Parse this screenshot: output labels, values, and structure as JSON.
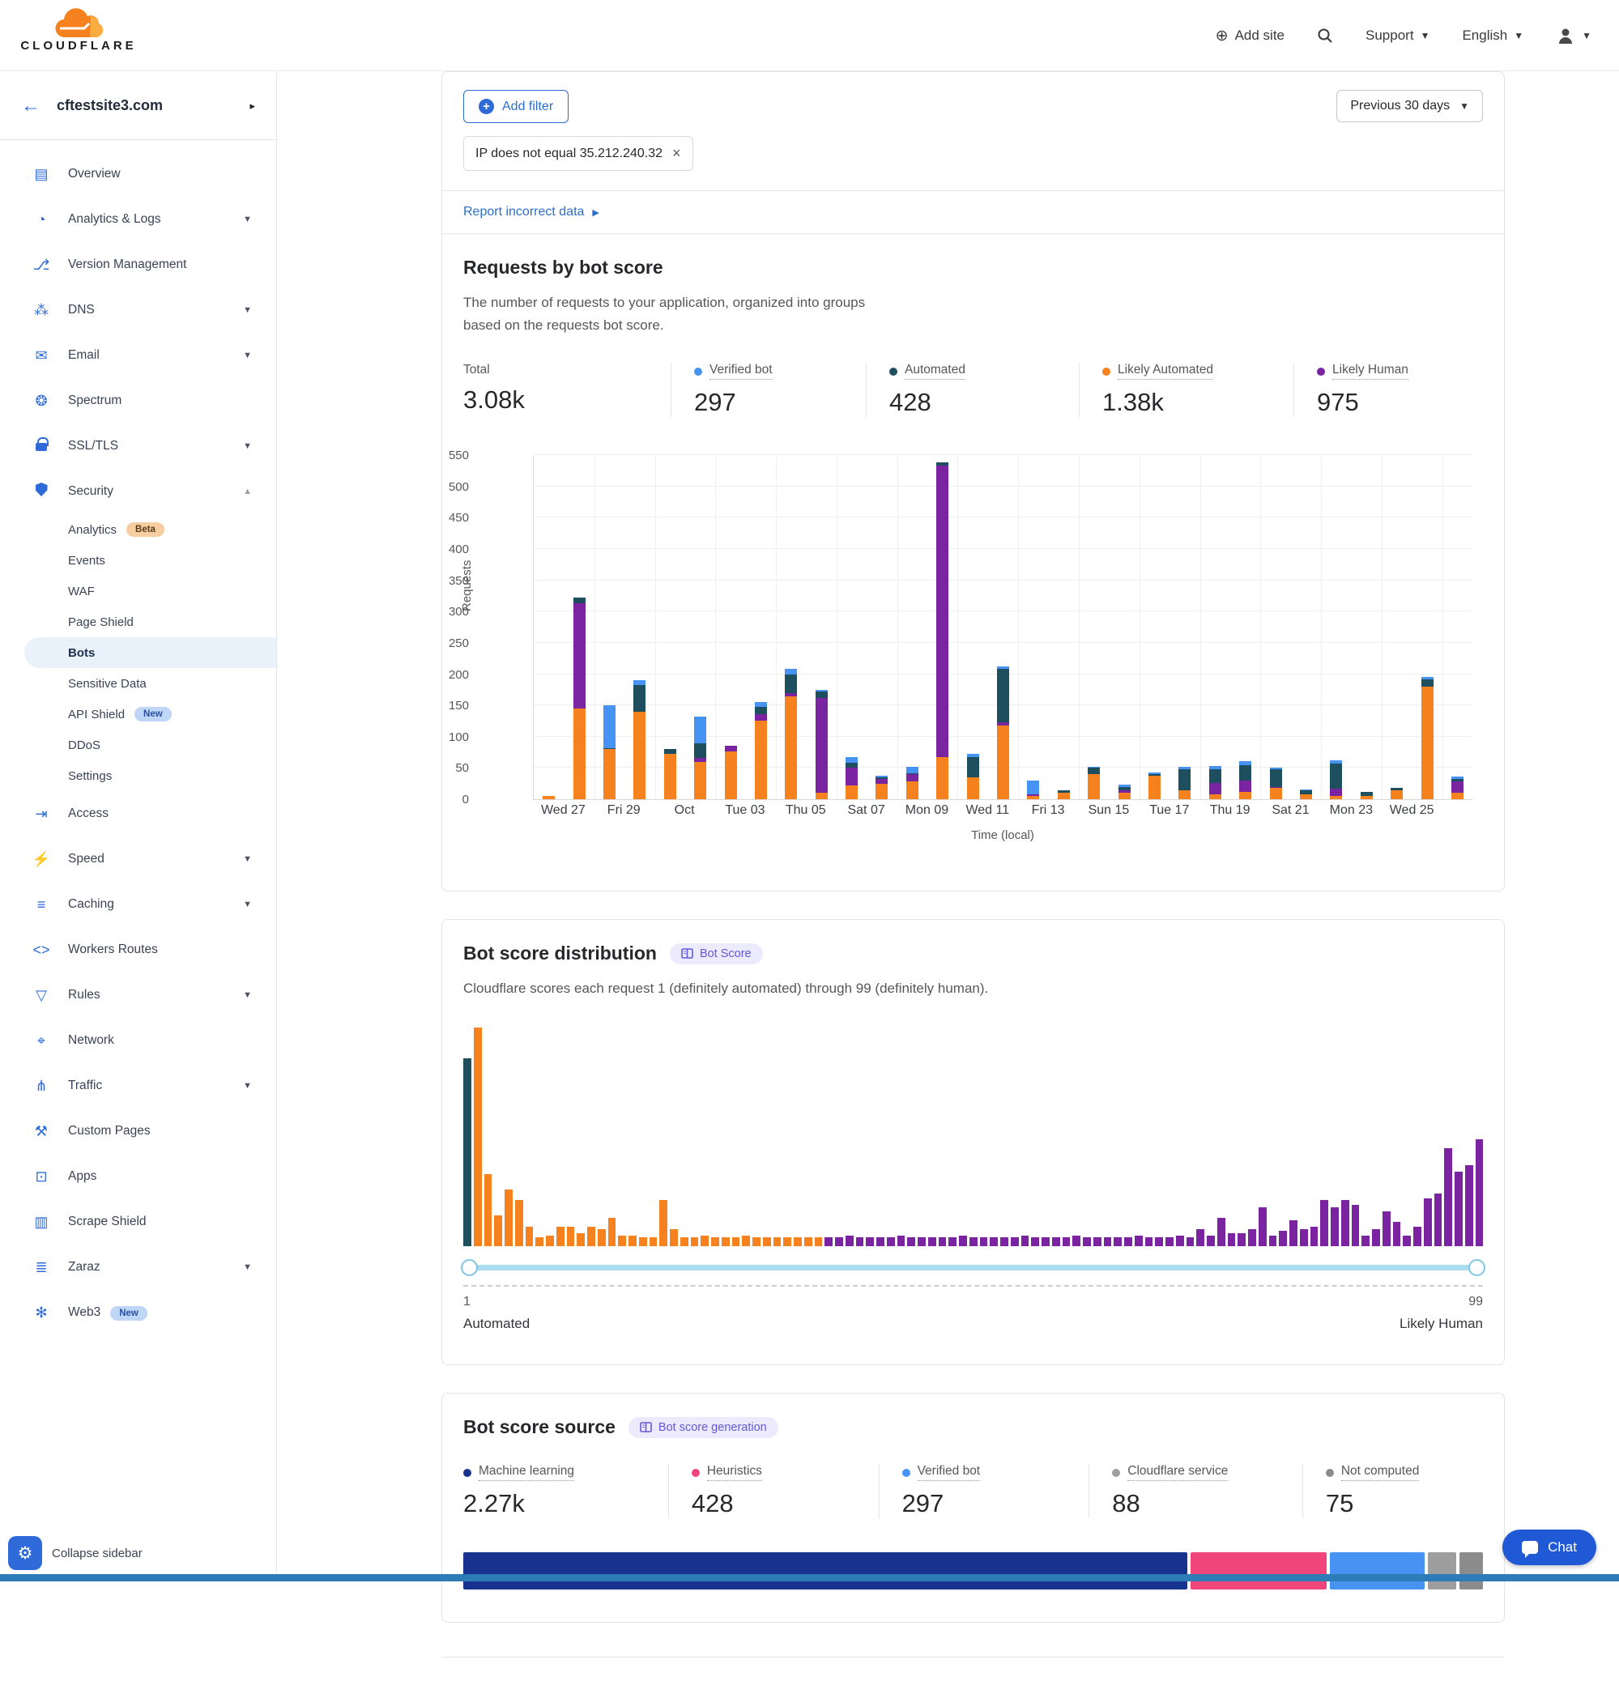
{
  "header": {
    "logo_word": "CLOUDFLARE",
    "add_site_label": "Add site",
    "support_label": "Support",
    "language_label": "English"
  },
  "sidebar": {
    "site_name": "cftestsite3.com",
    "collapse_label": "Collapse sidebar",
    "items": [
      {
        "label": "Overview",
        "icon": "overview-icon",
        "glyph": "▤"
      },
      {
        "label": "Analytics & Logs",
        "icon": "analytics-logs-icon",
        "glyph": "◔",
        "chevron": "down"
      },
      {
        "label": "Version Management",
        "icon": "version-management-icon",
        "glyph": "⎇"
      },
      {
        "label": "DNS",
        "icon": "dns-icon",
        "glyph": "⁂",
        "chevron": "down"
      },
      {
        "label": "Email",
        "icon": "email-icon",
        "glyph": "✉",
        "chevron": "down"
      },
      {
        "label": "Spectrum",
        "icon": "spectrum-icon",
        "glyph": "❂"
      },
      {
        "label": "SSL/TLS",
        "icon": "ssl-tls-lock-icon",
        "glyph": "css-lock",
        "chevron": "down"
      },
      {
        "label": "Security",
        "icon": "security-shield-icon",
        "glyph": "css-shield",
        "chevron": "up",
        "sub": [
          {
            "label": "Analytics",
            "badge": "Beta",
            "badge_type": "beta"
          },
          {
            "label": "Events"
          },
          {
            "label": "WAF"
          },
          {
            "label": "Page Shield"
          },
          {
            "label": "Bots",
            "active": true
          },
          {
            "label": "Sensitive Data"
          },
          {
            "label": "API Shield",
            "badge": "New",
            "badge_type": "new"
          },
          {
            "label": "DDoS"
          },
          {
            "label": "Settings"
          }
        ]
      },
      {
        "label": "Access",
        "icon": "access-icon",
        "glyph": "⇥"
      },
      {
        "label": "Speed",
        "icon": "speed-icon",
        "glyph": "⚡",
        "chevron": "down"
      },
      {
        "label": "Caching",
        "icon": "caching-icon",
        "glyph": "≡",
        "chevron": "down"
      },
      {
        "label": "Workers Routes",
        "icon": "workers-routes-icon",
        "glyph": "<>"
      },
      {
        "label": "Rules",
        "icon": "rules-icon",
        "glyph": "▽",
        "chevron": "down"
      },
      {
        "label": "Network",
        "icon": "network-icon",
        "glyph": "⌖"
      },
      {
        "label": "Traffic",
        "icon": "traffic-icon",
        "glyph": "⋔",
        "chevron": "down"
      },
      {
        "label": "Custom Pages",
        "icon": "custom-pages-icon",
        "glyph": "⚒"
      },
      {
        "label": "Apps",
        "icon": "apps-icon",
        "glyph": "⊡"
      },
      {
        "label": "Scrape Shield",
        "icon": "scrape-shield-icon",
        "glyph": "▥"
      },
      {
        "label": "Zaraz",
        "icon": "zaraz-icon",
        "glyph": "≣",
        "chevron": "down"
      },
      {
        "label": "Web3",
        "icon": "web3-icon",
        "glyph": "✻",
        "badge": "New",
        "badge_type": "new"
      }
    ]
  },
  "content": {
    "filter": {
      "add_filter": "Add filter",
      "chip": "IP does not equal 35.212.240.32",
      "date_range": "Previous 30 days",
      "report_link": "Report incorrect data"
    },
    "requests": {
      "title": "Requests by bot score",
      "description": "The number of requests to your application, organized into groups based on the requests bot score.",
      "stats": [
        {
          "label": "Total",
          "value": "3.08k",
          "color": null
        },
        {
          "label": "Verified bot",
          "value": "297",
          "color": "#4693F4"
        },
        {
          "label": "Automated",
          "value": "428",
          "color": "#1D4F5E"
        },
        {
          "label": "Likely Automated",
          "value": "1.38k",
          "color": "#F6821F"
        },
        {
          "label": "Likely Human",
          "value": "975",
          "color": "#7B24A1"
        }
      ]
    },
    "distribution": {
      "title": "Bot score distribution",
      "badge": "Bot Score",
      "description": "Cloudflare scores each request 1 (definitely automated) through 99 (definitely human).",
      "slider": {
        "min_label": "1",
        "max_label": "99",
        "left_caption": "Automated",
        "right_caption": "Likely Human"
      }
    },
    "source": {
      "title": "Bot score source",
      "badge": "Bot score generation",
      "stats": [
        {
          "label": "Machine learning",
          "value": "2.27k",
          "color": "#17338F"
        },
        {
          "label": "Heuristics",
          "value": "428",
          "color": "#F0467C"
        },
        {
          "label": "Verified bot",
          "value": "297",
          "color": "#4693F4"
        },
        {
          "label": "Cloudflare service",
          "value": "88",
          "color": "#9E9E9E"
        },
        {
          "label": "Not computed",
          "value": "75",
          "color": "#8C8C8C"
        }
      ]
    }
  },
  "chat_label": "Chat",
  "chart_data": [
    {
      "type": "bar",
      "stacked": true,
      "title": "Requests by bot score",
      "ylabel": "Requests",
      "xlabel": "Time (local)",
      "ylim": [
        0,
        550
      ],
      "ytick_step": 50,
      "grid": true,
      "categories": [
        "Wed 27",
        "Fri 29",
        "Oct",
        "Tue 03",
        "Thu 05",
        "Sat 07",
        "Mon 09",
        "Wed 11",
        "Fri 13",
        "Sun 15",
        "Tue 17",
        "Thu 19",
        "Sat 21",
        "Mon 23",
        "Wed 25"
      ],
      "bars_per_category": 2,
      "series": [
        {
          "name": "Likely Automated",
          "color": "#F6821F",
          "values": [
            5,
            145,
            80,
            140,
            73,
            60,
            77,
            126,
            165,
            10,
            22,
            25,
            28,
            68,
            35,
            118,
            5,
            10,
            40,
            10,
            38,
            15,
            8,
            12,
            18,
            8,
            5,
            5,
            15,
            180,
            10
          ]
        },
        {
          "name": "Likely Human",
          "color": "#7B24A1",
          "values": [
            0,
            168,
            0,
            0,
            0,
            6,
            8,
            10,
            5,
            152,
            28,
            8,
            12,
            465,
            0,
            5,
            3,
            0,
            0,
            5,
            0,
            0,
            18,
            18,
            2,
            0,
            12,
            0,
            0,
            0,
            18
          ]
        },
        {
          "name": "Automated",
          "color": "#1D4F5E",
          "values": [
            0,
            10,
            2,
            42,
            7,
            24,
            0,
            12,
            30,
            10,
            8,
            2,
            2,
            5,
            33,
            85,
            0,
            5,
            10,
            4,
            2,
            33,
            22,
            25,
            28,
            6,
            40,
            7,
            3,
            12,
            5
          ]
        },
        {
          "name": "Verified bot",
          "color": "#4693F4",
          "values": [
            0,
            0,
            68,
            8,
            0,
            42,
            0,
            8,
            8,
            3,
            9,
            3,
            10,
            0,
            4,
            5,
            22,
            0,
            2,
            4,
            3,
            4,
            5,
            6,
            3,
            2,
            5,
            0,
            0,
            3,
            3
          ]
        }
      ]
    },
    {
      "type": "bar",
      "title": "Bot score distribution",
      "xlabel": "Bot score",
      "x_range": [
        1,
        99
      ],
      "ymax_relative": 100,
      "series": [
        {
          "name": "Automated",
          "color": "#1D4F5E",
          "bins": [
            86
          ]
        },
        {
          "name": "Likely Automated",
          "color": "#F6821F",
          "bins": [
            100,
            33,
            14,
            26,
            21,
            9,
            4,
            5,
            9,
            9,
            6,
            9,
            8,
            13,
            5,
            5,
            4,
            4,
            21,
            8,
            4,
            4,
            5,
            4,
            4,
            4,
            5,
            4,
            4,
            4,
            4,
            4,
            4,
            4
          ]
        },
        {
          "name": "Likely Human",
          "color": "#7B24A1",
          "bins": [
            4,
            4,
            5,
            4,
            4,
            4,
            4,
            5,
            4,
            4,
            4,
            4,
            4,
            5,
            4,
            4,
            4,
            4,
            4,
            5,
            4,
            4,
            4,
            4,
            5,
            4,
            4,
            4,
            4,
            4,
            5,
            4,
            4,
            4,
            5,
            4,
            8,
            5,
            13,
            6,
            6,
            8,
            18,
            5,
            7,
            12,
            8,
            9,
            21,
            18,
            21,
            19,
            5,
            8,
            16,
            11,
            5,
            9,
            22,
            24,
            45,
            34,
            37,
            49
          ]
        }
      ]
    },
    {
      "type": "bar",
      "orientation": "horizontal-stacked",
      "title": "Bot score source",
      "segments": [
        {
          "name": "Machine learning",
          "value": 2270,
          "color": "#17338F"
        },
        {
          "name": "Heuristics",
          "value": 428,
          "color": "#F0467C"
        },
        {
          "name": "Verified bot",
          "value": 297,
          "color": "#4693F4"
        },
        {
          "name": "Cloudflare service",
          "value": 88,
          "color": "#9E9E9E"
        },
        {
          "name": "Not computed",
          "value": 75,
          "color": "#8C8C8C"
        }
      ]
    }
  ]
}
